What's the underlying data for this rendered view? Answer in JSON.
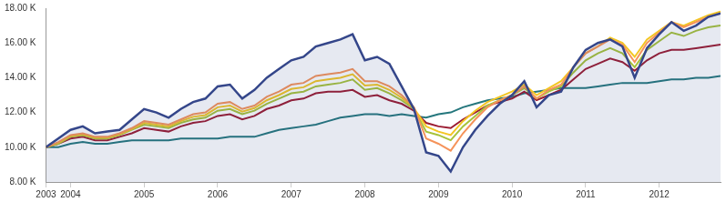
{
  "chart_data": {
    "type": "line",
    "categories": [
      "2003",
      null,
      "2004",
      null,
      null,
      null,
      null,
      null,
      "2005",
      null,
      null,
      null,
      null,
      null,
      "2006",
      null,
      null,
      null,
      null,
      null,
      "2007",
      null,
      null,
      null,
      null,
      null,
      "2008",
      null,
      null,
      null,
      null,
      null,
      "2009",
      null,
      null,
      null,
      null,
      null,
      "2010",
      null,
      null,
      null,
      null,
      null,
      "2011",
      null,
      null,
      null,
      null,
      null,
      "2012",
      null,
      null,
      null,
      null,
      null
    ],
    "ylim": [
      8000,
      18000
    ],
    "yticks": [
      {
        "value": 8000,
        "label": "8.00 K"
      },
      {
        "value": 10000,
        "label": "10.00 K"
      },
      {
        "value": 12000,
        "label": "12.00 K"
      },
      {
        "value": 14000,
        "label": "14.00 K"
      },
      {
        "value": 16000,
        "label": "16.00 K"
      },
      {
        "value": 18000,
        "label": "18.00 K"
      }
    ],
    "grid": false,
    "series": [
      {
        "color": "#34468a",
        "type": "area",
        "values": [
          10000,
          10500,
          11000,
          11200,
          10800,
          10900,
          11000,
          11600,
          12200,
          12000,
          11700,
          12200,
          12600,
          12800,
          13500,
          13600,
          12800,
          13300,
          14000,
          14500,
          15000,
          15200,
          15800,
          16000,
          16200,
          16500,
          15000,
          15200,
          14800,
          13500,
          12200,
          9700,
          9500,
          8600,
          10000,
          11000,
          11800,
          12500,
          13000,
          13800,
          12300,
          13000,
          13200,
          14600,
          15600,
          16000,
          16200,
          15800,
          14000,
          15700,
          16500,
          17200,
          16700,
          17000,
          17500,
          17700
        ]
      },
      {
        "color": "#f5935a",
        "type": "line",
        "values": [
          10000,
          10300,
          10700,
          10800,
          10600,
          10600,
          10800,
          11100,
          11500,
          11400,
          11300,
          11600,
          11900,
          12000,
          12500,
          12600,
          12200,
          12400,
          12900,
          13200,
          13600,
          13700,
          14100,
          14200,
          14300,
          14500,
          13800,
          13800,
          13500,
          13000,
          12300,
          10500,
          10200,
          9800,
          10800,
          11600,
          12300,
          12700,
          13000,
          13500,
          12800,
          13300,
          13600,
          14600,
          15400,
          15800,
          16200,
          15900,
          14900,
          16000,
          16600,
          17200,
          16900,
          17200,
          17500,
          17700
        ]
      },
      {
        "color": "#f3c623",
        "type": "line",
        "values": [
          10000,
          10250,
          10650,
          10750,
          10550,
          10550,
          10750,
          11050,
          11400,
          11300,
          11200,
          11500,
          11750,
          11850,
          12300,
          12400,
          12050,
          12250,
          12700,
          13000,
          13350,
          13450,
          13800,
          13900,
          14000,
          14200,
          13550,
          13600,
          13300,
          12850,
          12250,
          11200,
          10900,
          10700,
          11500,
          12100,
          12600,
          12900,
          13200,
          13600,
          13000,
          13400,
          13800,
          14600,
          15400,
          15800,
          16300,
          16000,
          15200,
          16200,
          16700,
          17200,
          17000,
          17300,
          17600,
          17800
        ]
      },
      {
        "color": "#a7c23a",
        "type": "line",
        "values": [
          10000,
          10200,
          10600,
          10700,
          10500,
          10500,
          10700,
          11000,
          11300,
          11200,
          11100,
          11400,
          11600,
          11700,
          12100,
          12200,
          11900,
          12100,
          12500,
          12800,
          13100,
          13200,
          13500,
          13600,
          13700,
          13900,
          13300,
          13400,
          13100,
          12700,
          12200,
          10900,
          10700,
          10400,
          11200,
          11800,
          12400,
          12700,
          13000,
          13400,
          12800,
          13200,
          13500,
          14300,
          15000,
          15400,
          15700,
          15400,
          14600,
          15600,
          16100,
          16600,
          16400,
          16700,
          16900,
          17000
        ]
      },
      {
        "color": "#9b1b30",
        "type": "line",
        "values": [
          10000,
          10200,
          10500,
          10600,
          10400,
          10400,
          10600,
          10800,
          11100,
          11000,
          10900,
          11200,
          11400,
          11500,
          11800,
          11900,
          11600,
          11800,
          12200,
          12400,
          12700,
          12800,
          13100,
          13200,
          13200,
          13300,
          12900,
          13000,
          12700,
          12500,
          12100,
          11400,
          11200,
          11100,
          11600,
          12000,
          12400,
          12600,
          12800,
          13200,
          12700,
          13000,
          13300,
          13900,
          14500,
          14800,
          15100,
          14900,
          14400,
          15000,
          15400,
          15600,
          15600,
          15700,
          15800,
          15900
        ]
      },
      {
        "color": "#25777d",
        "type": "line",
        "values": [
          10000,
          10000,
          10200,
          10300,
          10200,
          10200,
          10300,
          10400,
          10400,
          10400,
          10400,
          10500,
          10500,
          10500,
          10500,
          10600,
          10600,
          10600,
          10800,
          11000,
          11100,
          11200,
          11300,
          11500,
          11700,
          11800,
          11900,
          11900,
          11800,
          11900,
          11800,
          11700,
          11900,
          12000,
          12300,
          12500,
          12700,
          12800,
          12900,
          13100,
          13200,
          13300,
          13400,
          13400,
          13400,
          13500,
          13600,
          13700,
          13700,
          13700,
          13800,
          13900,
          13900,
          14000,
          14000,
          14100
        ]
      }
    ]
  }
}
